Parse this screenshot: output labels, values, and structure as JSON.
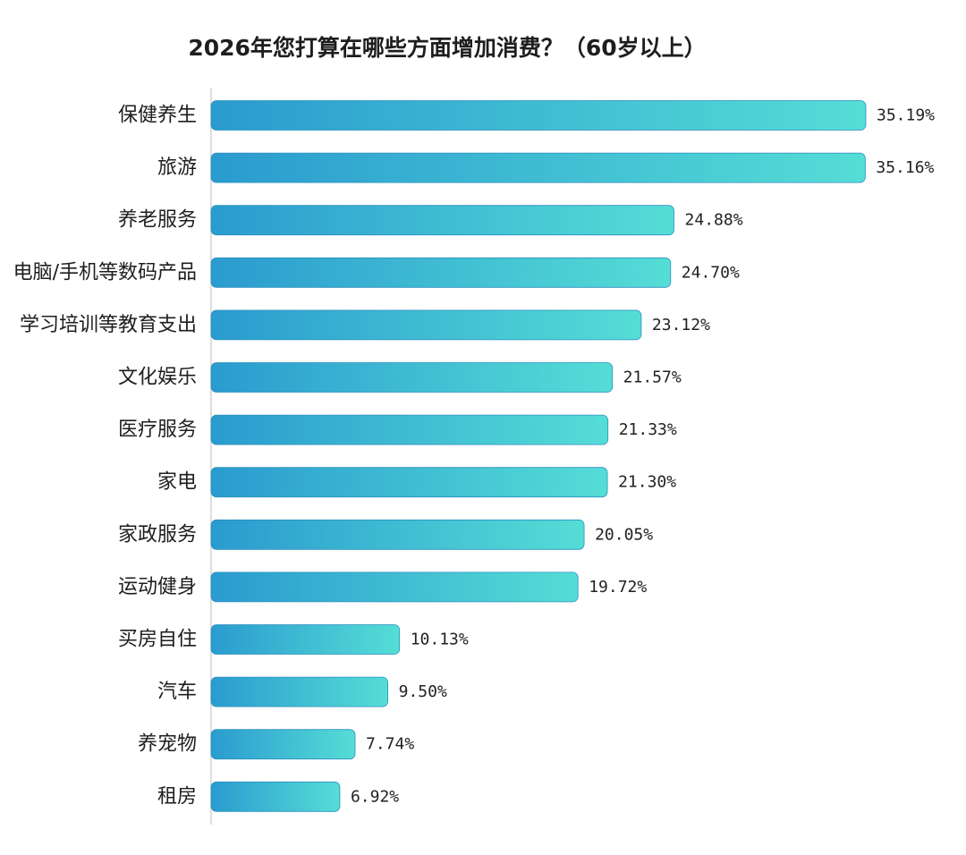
{
  "colors": {
    "bar_start": "#2a9bcf",
    "bar_end": "#55ddd6",
    "bar_stroke": "#2c8fbe",
    "axis": "#d4d4d4",
    "text": "#1e1e1e"
  },
  "chart_data": {
    "type": "bar",
    "orientation": "horizontal",
    "title": "2026年您打算在哪些方面增加消费？（60岁以上）",
    "xlabel": "",
    "ylabel": "",
    "xlim": [
      0,
      35.19
    ],
    "grid": false,
    "legend": "none",
    "categories": [
      "保健养生",
      "旅游",
      "养老服务",
      "电脑/手机等数码产品",
      "学习培训等教育支出",
      "文化娱乐",
      "医疗服务",
      "家电",
      "家政服务",
      "运动健身",
      "买房自住",
      "汽车",
      "养宠物",
      "租房"
    ],
    "values": [
      35.19,
      35.16,
      24.88,
      24.7,
      23.12,
      21.57,
      21.33,
      21.3,
      20.05,
      19.72,
      10.13,
      9.5,
      7.74,
      6.92
    ],
    "value_labels": [
      "35.19%",
      "35.16%",
      "24.88%",
      "24.70%",
      "23.12%",
      "21.57%",
      "21.33%",
      "21.30%",
      "20.05%",
      "19.72%",
      "10.13%",
      "9.50%",
      "7.74%",
      "6.92%"
    ]
  }
}
